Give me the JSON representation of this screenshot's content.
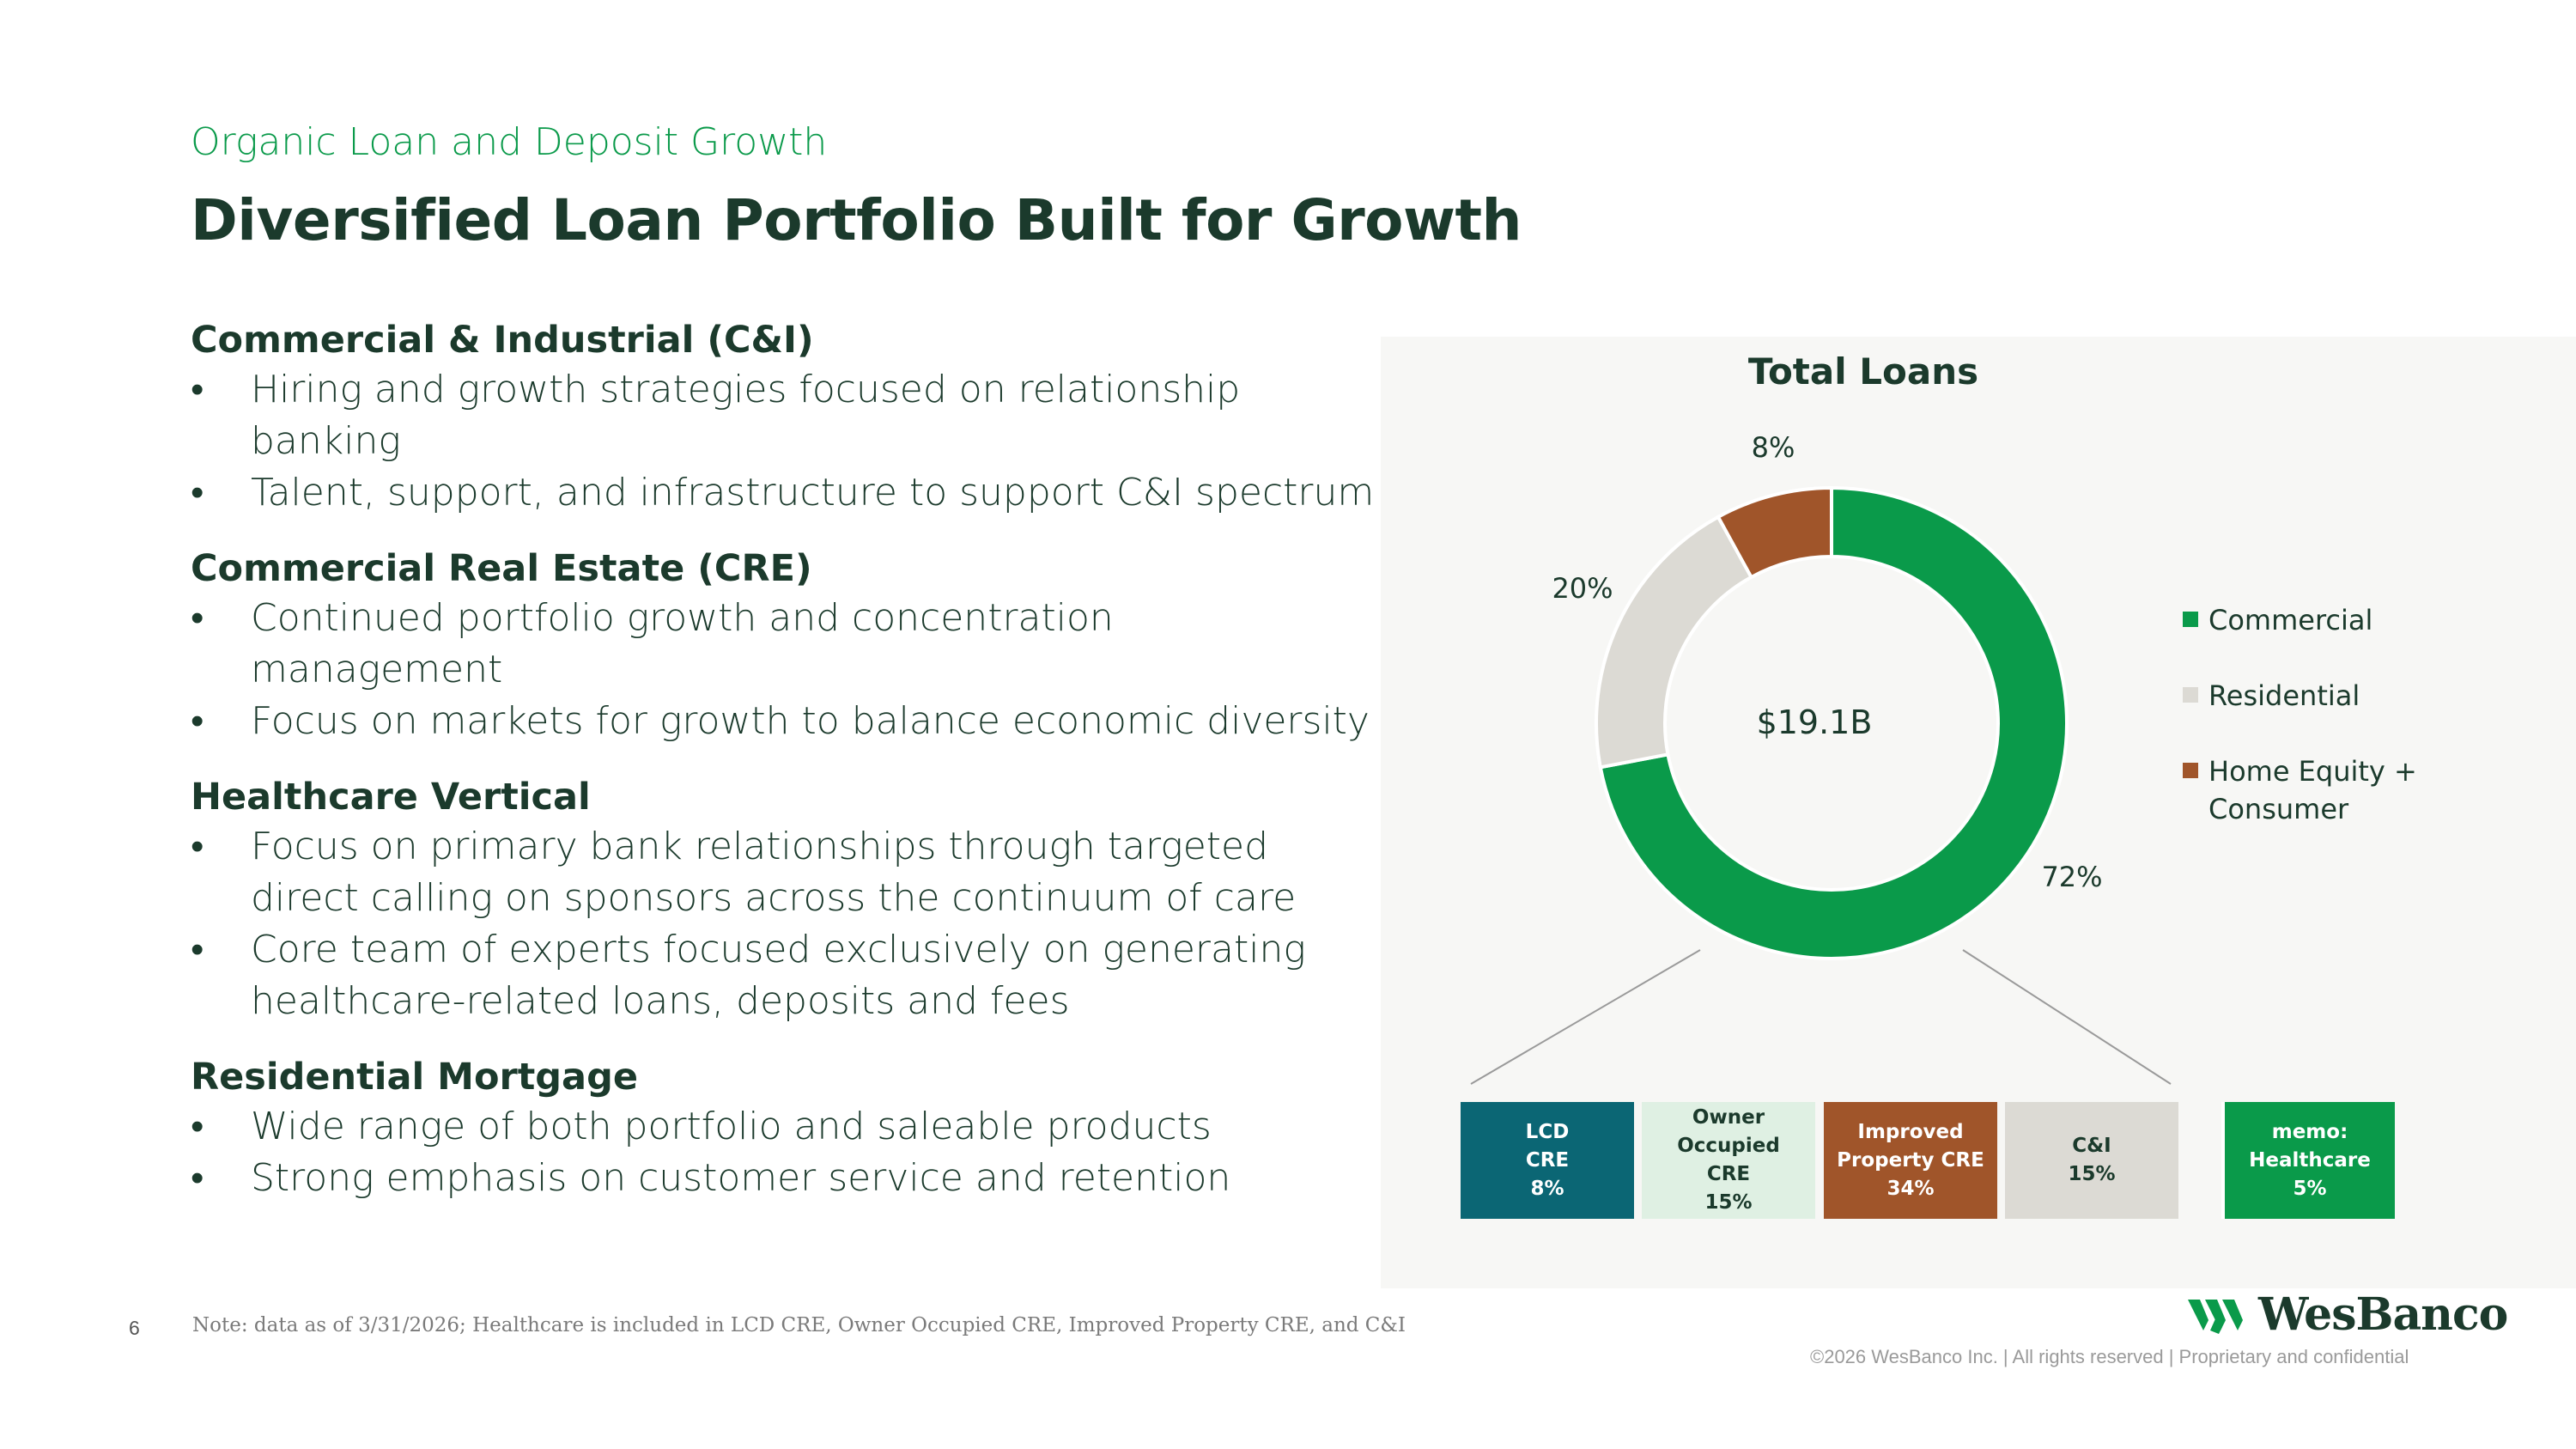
{
  "header": {
    "subtitle": "Organic Loan and Deposit Growth",
    "title": "Diversified Loan Portfolio Built for Growth"
  },
  "sections": [
    {
      "heading": "Commercial & Industrial (C&I)",
      "bullets": [
        "Hiring and growth strategies focused on relationship banking",
        "Talent, support, and infrastructure to support C&I spectrum"
      ]
    },
    {
      "heading": "Commercial Real Estate (CRE)",
      "bullets": [
        "Continued portfolio growth and concentration management",
        "Focus on markets for growth to balance economic diversity"
      ]
    },
    {
      "heading": "Healthcare Vertical",
      "bullets": [
        "Focus on primary bank relationships through targeted direct calling on sponsors across the continuum of care",
        "Core team of experts  focused exclusively on generating healthcare-related loans, deposits and fees"
      ]
    },
    {
      "heading": "Residential Mortgage",
      "bullets": [
        "Wide range of both portfolio and saleable products",
        "Strong emphasis on customer service and retention"
      ]
    }
  ],
  "bullet_char": "•",
  "note": "Note: data as of 3/31/2026; Healthcare is included in LCD CRE, Owner Occupied CRE, Improved Property CRE, and C&I",
  "page_number": "6",
  "chart_data": {
    "type": "pie",
    "title": "Total Loans",
    "center_label": "$19.1B",
    "slices": [
      {
        "name": "Commercial",
        "value": 72,
        "label": "72%",
        "color": "#0a9a4a"
      },
      {
        "name": "Residential",
        "value": 20,
        "label": "20%",
        "color": "#dcdad4"
      },
      {
        "name": "Home Equity + Consumer",
        "value": 8,
        "label": "8%",
        "color": "#a0552a"
      }
    ],
    "legend_position": "right",
    "breakdown": [
      {
        "label": "LCD\nCRE\n8%",
        "bg": "#0b6674",
        "fg": "#ffffff"
      },
      {
        "label": "Owner\nOccupied\nCRE\n15%",
        "bg": "#dff0e3",
        "fg": "#1b3a2c"
      },
      {
        "label": "Improved\nProperty CRE\n34%",
        "bg": "#a0552a",
        "fg": "#ffffff"
      },
      {
        "label": "C&I\n15%",
        "bg": "#dcdad4",
        "fg": "#1b3a2c"
      },
      {
        "label": "memo:\nHealthcare\n5%",
        "bg": "#0a9a4a",
        "fg": "#ffffff"
      }
    ]
  },
  "logo": {
    "text": "WesBanco",
    "icon": "wesbanco-logo-icon"
  },
  "footer": "©2026 WesBanco Inc.  |  All rights reserved  |  Proprietary and confidential"
}
